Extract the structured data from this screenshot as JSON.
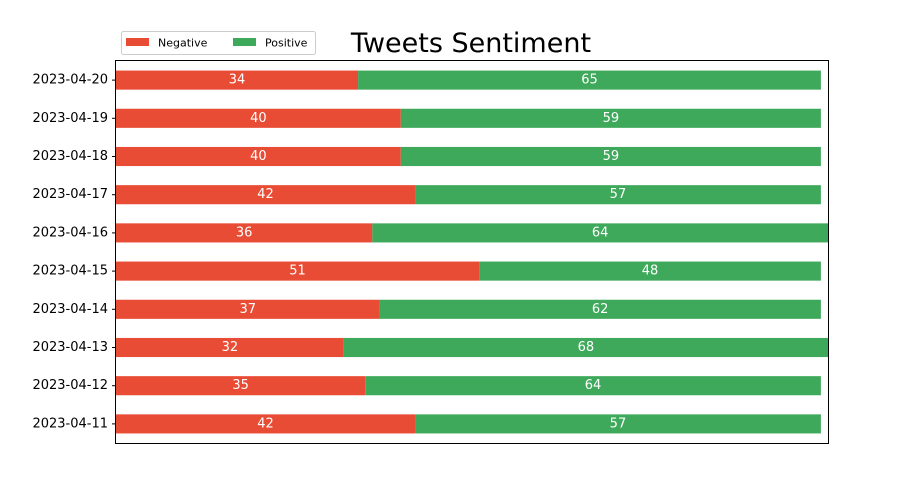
{
  "chart_data": {
    "type": "bar",
    "orientation": "horizontal",
    "stacked": true,
    "title": "Tweets Sentiment",
    "xlabel": "",
    "ylabel": "",
    "xlim": [
      0,
      100
    ],
    "x_axis_ticks_visible": false,
    "grid": false,
    "legend_position": "top-left",
    "legend_columns": 2,
    "categories": [
      "2023-04-20",
      "2023-04-19",
      "2023-04-18",
      "2023-04-17",
      "2023-04-16",
      "2023-04-15",
      "2023-04-14",
      "2023-04-13",
      "2023-04-12",
      "2023-04-11"
    ],
    "series": [
      {
        "name": "Negative",
        "color": "#e84c35",
        "values": [
          34,
          40,
          40,
          42,
          36,
          51,
          37,
          32,
          35,
          42
        ]
      },
      {
        "name": "Positive",
        "color": "#3fa95b",
        "values": [
          65,
          59,
          59,
          57,
          64,
          48,
          62,
          68,
          64,
          57
        ]
      }
    ],
    "data_labels": true
  }
}
